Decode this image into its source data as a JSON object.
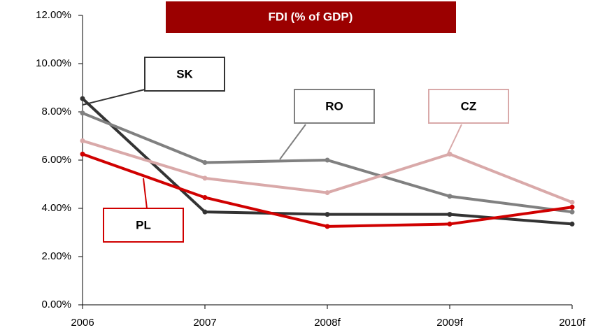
{
  "chart_data": {
    "type": "line",
    "title": "FDI (% of GDP)",
    "categories": [
      "2006",
      "2007",
      "2008f",
      "2009f",
      "2010f"
    ],
    "series": [
      {
        "name": "SK",
        "color": "#333333",
        "values": [
          8.55,
          3.85,
          3.75,
          3.75,
          3.35
        ]
      },
      {
        "name": "RO",
        "color": "#808080",
        "values": [
          7.95,
          5.9,
          6.0,
          4.5,
          3.85
        ]
      },
      {
        "name": "CZ",
        "color": "#d9a9a9",
        "values": [
          6.8,
          5.25,
          4.65,
          6.25,
          4.25
        ]
      },
      {
        "name": "PL",
        "color": "#d00000",
        "values": [
          6.25,
          4.45,
          3.25,
          3.35,
          4.05
        ]
      }
    ],
    "ylim": [
      0,
      12
    ],
    "yticks": [
      {
        "value": 0,
        "label": "0.00%"
      },
      {
        "value": 2,
        "label": "2.00%"
      },
      {
        "value": 4,
        "label": "4.00%"
      },
      {
        "value": 6,
        "label": "6.00%"
      },
      {
        "value": 8,
        "label": "8.00%"
      },
      {
        "value": 10,
        "label": "10.00%"
      },
      {
        "value": 12,
        "label": "12.00%"
      }
    ],
    "title_color": "#9b0000"
  }
}
